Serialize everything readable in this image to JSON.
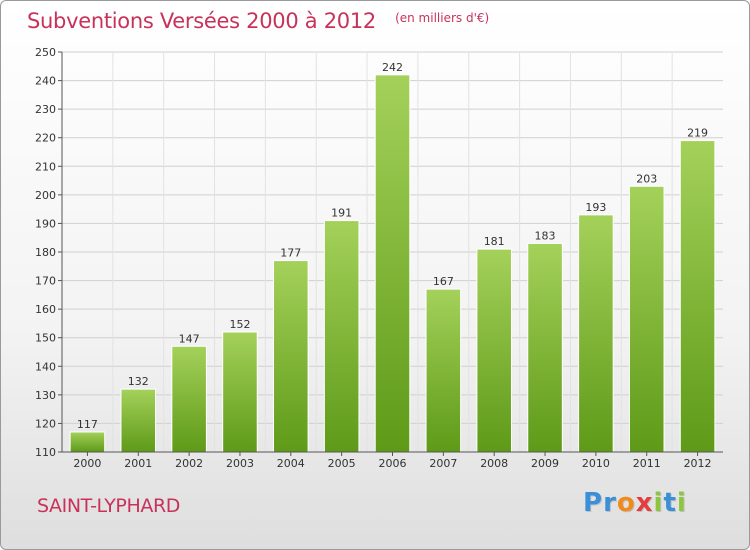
{
  "chart_data": {
    "type": "bar",
    "title": "Subventions Versées 2000 à 2012",
    "subtitle": "(en milliers d'€)",
    "categories": [
      "2000",
      "2001",
      "2002",
      "2003",
      "2004",
      "2005",
      "2006",
      "2007",
      "2008",
      "2009",
      "2010",
      "2011",
      "2012"
    ],
    "values": [
      117,
      132,
      147,
      152,
      177,
      191,
      242,
      167,
      181,
      183,
      193,
      203,
      219
    ],
    "ylim": [
      110,
      250
    ],
    "yticks": [
      110,
      120,
      130,
      140,
      150,
      160,
      170,
      180,
      190,
      200,
      210,
      220,
      230,
      240,
      250
    ],
    "grid": true,
    "bar_color_top": "#a4d15a",
    "bar_color_bottom": "#5e9a18"
  },
  "footer": {
    "place": "SAINT-LYPHARD",
    "logo_letters": [
      {
        "ch": "P",
        "color": "#3a8fd6"
      },
      {
        "ch": "r",
        "color": "#3a8fd6"
      },
      {
        "ch": "o",
        "color": "#f08a1c"
      },
      {
        "ch": "x",
        "color": "#e43d3d"
      },
      {
        "ch": "i",
        "color": "#8cc63f"
      },
      {
        "ch": "t",
        "color": "#3a8fd6"
      },
      {
        "ch": "i",
        "color": "#8cc63f"
      }
    ]
  }
}
